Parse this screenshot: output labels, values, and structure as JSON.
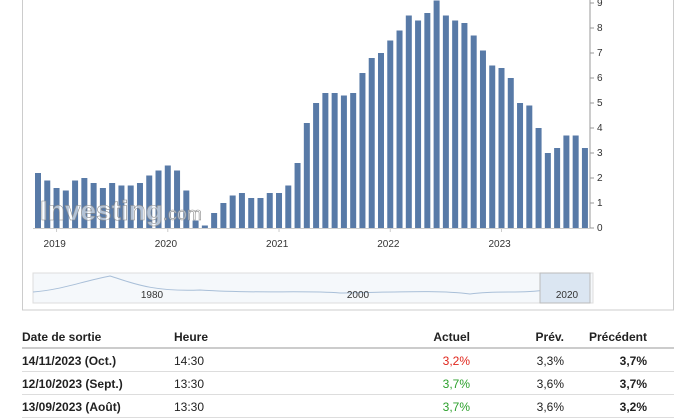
{
  "chart_data": {
    "type": "bar",
    "color": "#587aa7",
    "categories": [
      null,
      null,
      "2019",
      null,
      null,
      null,
      null,
      null,
      null,
      null,
      null,
      null,
      null,
      null,
      "2020",
      null,
      null,
      null,
      null,
      null,
      null,
      null,
      null,
      null,
      null,
      null,
      "2021",
      null,
      null,
      null,
      null,
      null,
      null,
      null,
      null,
      null,
      null,
      null,
      "2022",
      null,
      null,
      null,
      null,
      null,
      null,
      null,
      null,
      null,
      null,
      null,
      "2023",
      null,
      null,
      null,
      null,
      null,
      null,
      null,
      null,
      null
    ],
    "values": [
      2.2,
      1.9,
      1.6,
      1.5,
      1.9,
      2.0,
      1.8,
      1.6,
      1.8,
      1.7,
      1.7,
      1.8,
      2.1,
      2.3,
      2.5,
      2.3,
      1.5,
      0.3,
      0.1,
      0.6,
      1.0,
      1.3,
      1.4,
      1.2,
      1.2,
      1.4,
      1.4,
      1.7,
      2.6,
      4.2,
      5.0,
      5.4,
      5.4,
      5.3,
      5.4,
      6.2,
      6.8,
      7.0,
      7.5,
      7.9,
      8.5,
      8.3,
      8.6,
      9.1,
      8.5,
      8.3,
      8.2,
      7.7,
      7.1,
      6.5,
      6.4,
      6.0,
      5.0,
      4.9,
      4.0,
      3.0,
      3.2,
      3.7,
      3.7,
      3.2
    ],
    "ylim": [
      0,
      9.2
    ],
    "yticks": [
      0,
      1,
      2,
      3,
      4,
      5,
      6,
      7,
      8,
      9
    ],
    "watermark": "Investing",
    "watermark_suffix": ".com",
    "navigator_labels": [
      "1980",
      "2000",
      "2020"
    ]
  },
  "table": {
    "headers": [
      "Date de sortie",
      "Heure",
      "Actuel",
      "Prév.",
      "Précédent"
    ],
    "rows": [
      {
        "date": "14/11/2023 (Oct.)",
        "time": "14:30",
        "actual": "3,2%",
        "actual_color": "#e0261c",
        "forecast": "3,3%",
        "previous": "3,7%"
      },
      {
        "date": "12/10/2023 (Sept.)",
        "time": "13:30",
        "actual": "3,7%",
        "actual_color": "#2ca02c",
        "forecast": "3,6%",
        "previous": "3,7%"
      },
      {
        "date": "13/09/2023 (Août)",
        "time": "13:30",
        "actual": "3,7%",
        "actual_color": "#2ca02c",
        "forecast": "3,6%",
        "previous": "3,2%"
      }
    ]
  }
}
